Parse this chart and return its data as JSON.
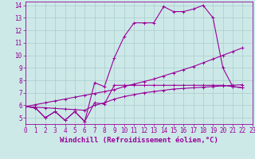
{
  "xlabel": "Windchill (Refroidissement éolien,°C)",
  "bg_color": "#cce9e8",
  "grid_color": "#aacccc",
  "line_color": "#990099",
  "xmin": 0,
  "xmax": 23,
  "ymin": 4.5,
  "ymax": 14.3,
  "s0": [
    5.9,
    5.8,
    5.0,
    5.5,
    4.8,
    5.5,
    4.7,
    7.8,
    7.5,
    9.8,
    11.5,
    12.6,
    12.6,
    12.6,
    13.9,
    13.5,
    13.5,
    13.7,
    14.0,
    13.0,
    9.0,
    7.5,
    7.4
  ],
  "s1": [
    5.9,
    5.8,
    5.0,
    5.5,
    4.8,
    5.5,
    4.7,
    6.2,
    6.1,
    7.6,
    7.6,
    7.6,
    7.6,
    7.6,
    7.6,
    7.6,
    7.6,
    7.6,
    7.6,
    7.6,
    7.6,
    7.5,
    7.4
  ],
  "s2": [
    5.9,
    6.05,
    6.2,
    6.35,
    6.5,
    6.65,
    6.8,
    6.95,
    7.1,
    7.25,
    7.5,
    7.7,
    7.9,
    8.1,
    8.35,
    8.6,
    8.85,
    9.1,
    9.4,
    9.7,
    10.0,
    10.3,
    10.6
  ],
  "s3": [
    5.9,
    5.85,
    5.8,
    5.75,
    5.7,
    5.65,
    5.6,
    6.0,
    6.2,
    6.5,
    6.7,
    6.85,
    7.0,
    7.1,
    7.2,
    7.3,
    7.35,
    7.4,
    7.45,
    7.5,
    7.55,
    7.6,
    7.65
  ],
  "label_fontsize": 6.5,
  "tick_fontsize": 5.5
}
